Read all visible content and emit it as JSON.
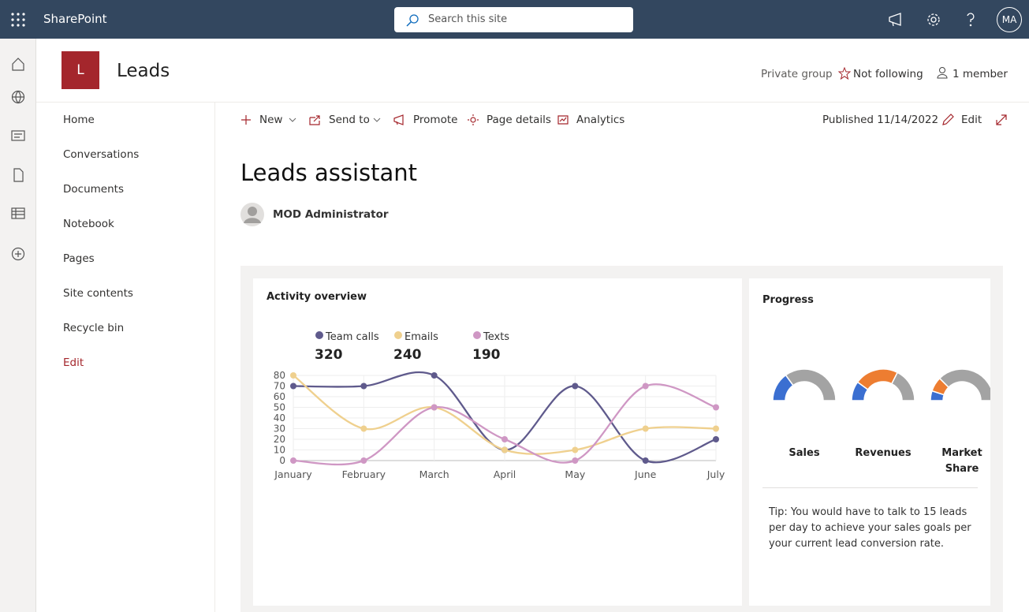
{
  "topbar": {
    "app_name": "SharePoint",
    "search_placeholder": "Search this site",
    "avatar": "MA"
  },
  "site": {
    "logo_letter": "L",
    "title": "Leads",
    "privacy": "Private group",
    "follow": "Not following",
    "members": "1 member"
  },
  "nav": [
    "Home",
    "Conversations",
    "Documents",
    "Notebook",
    "Pages",
    "Site contents",
    "Recycle bin",
    "Edit"
  ],
  "commands": [
    "New",
    "Send to",
    "Promote",
    "Page details",
    "Analytics"
  ],
  "published": "Published 11/14/2022",
  "edit": "Edit",
  "page": {
    "title": "Leads assistant",
    "author": "MOD Administrator"
  },
  "activity": {
    "type": "line",
    "title": "Activity overview",
    "categories": [
      "January",
      "February",
      "March",
      "April",
      "May",
      "June",
      "July"
    ],
    "series": [
      {
        "name": "Team calls",
        "total": 320,
        "color": "#5f5a8c",
        "values": [
          70,
          70,
          80,
          10,
          70,
          0,
          20
        ]
      },
      {
        "name": "Emails",
        "total": 240,
        "color": "#efd08e",
        "values": [
          80,
          30,
          50,
          10,
          10,
          30,
          30
        ]
      },
      {
        "name": "Texts",
        "total": 190,
        "color": "#cf97c4",
        "values": [
          0,
          0,
          50,
          20,
          0,
          70,
          50
        ]
      }
    ],
    "ylim": [
      0,
      80
    ],
    "yticks": [
      0,
      10,
      20,
      30,
      40,
      50,
      60,
      70,
      80
    ],
    "grid": true
  },
  "progress": {
    "type": "gauge",
    "title": "Progress",
    "items": [
      {
        "label": "Sales",
        "values": [
          30,
          70
        ],
        "colors": [
          "#3b6fd1",
          "#a3a3a3"
        ]
      },
      {
        "label": "Revenues",
        "values": [
          20,
          45,
          35
        ],
        "colors": [
          "#3b6fd1",
          "#ed7d31",
          "#a3a3a3"
        ]
      },
      {
        "label": "Market Share",
        "values": [
          10,
          15,
          75
        ],
        "colors": [
          "#3b6fd1",
          "#ed7d31",
          "#a3a3a3"
        ]
      }
    ],
    "tip": "Tip: You would have to talk to 15 leads per day to achieve your sales goals per your current lead conversion rate."
  }
}
